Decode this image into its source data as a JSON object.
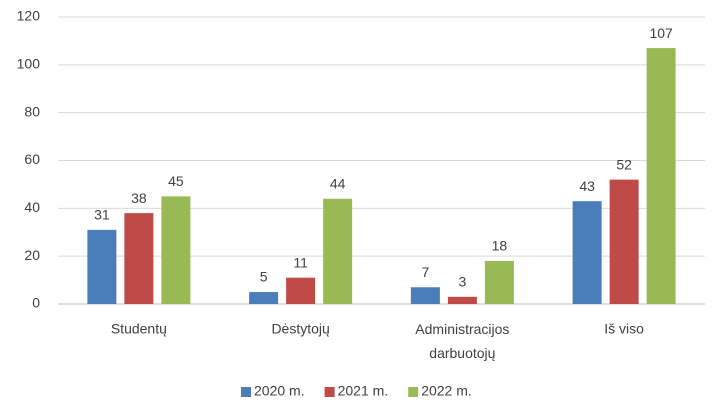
{
  "chart_data": {
    "type": "bar",
    "categories": [
      "Studentų",
      "Dėstytojų",
      "Administracijos darbuotojų",
      "Iš viso"
    ],
    "series": [
      {
        "name": "2020 m.",
        "color": "#4a7ebb",
        "values": [
          31,
          5,
          7,
          43
        ]
      },
      {
        "name": "2021 m.",
        "color": "#be4b48",
        "values": [
          38,
          11,
          3,
          52
        ]
      },
      {
        "name": "2022 m.",
        "color": "#98b954",
        "values": [
          45,
          44,
          18,
          107
        ]
      }
    ],
    "ylim": [
      0,
      120
    ],
    "yticks": [
      0,
      20,
      40,
      60,
      80,
      100,
      120
    ],
    "grid": true,
    "legend": "bottom"
  }
}
